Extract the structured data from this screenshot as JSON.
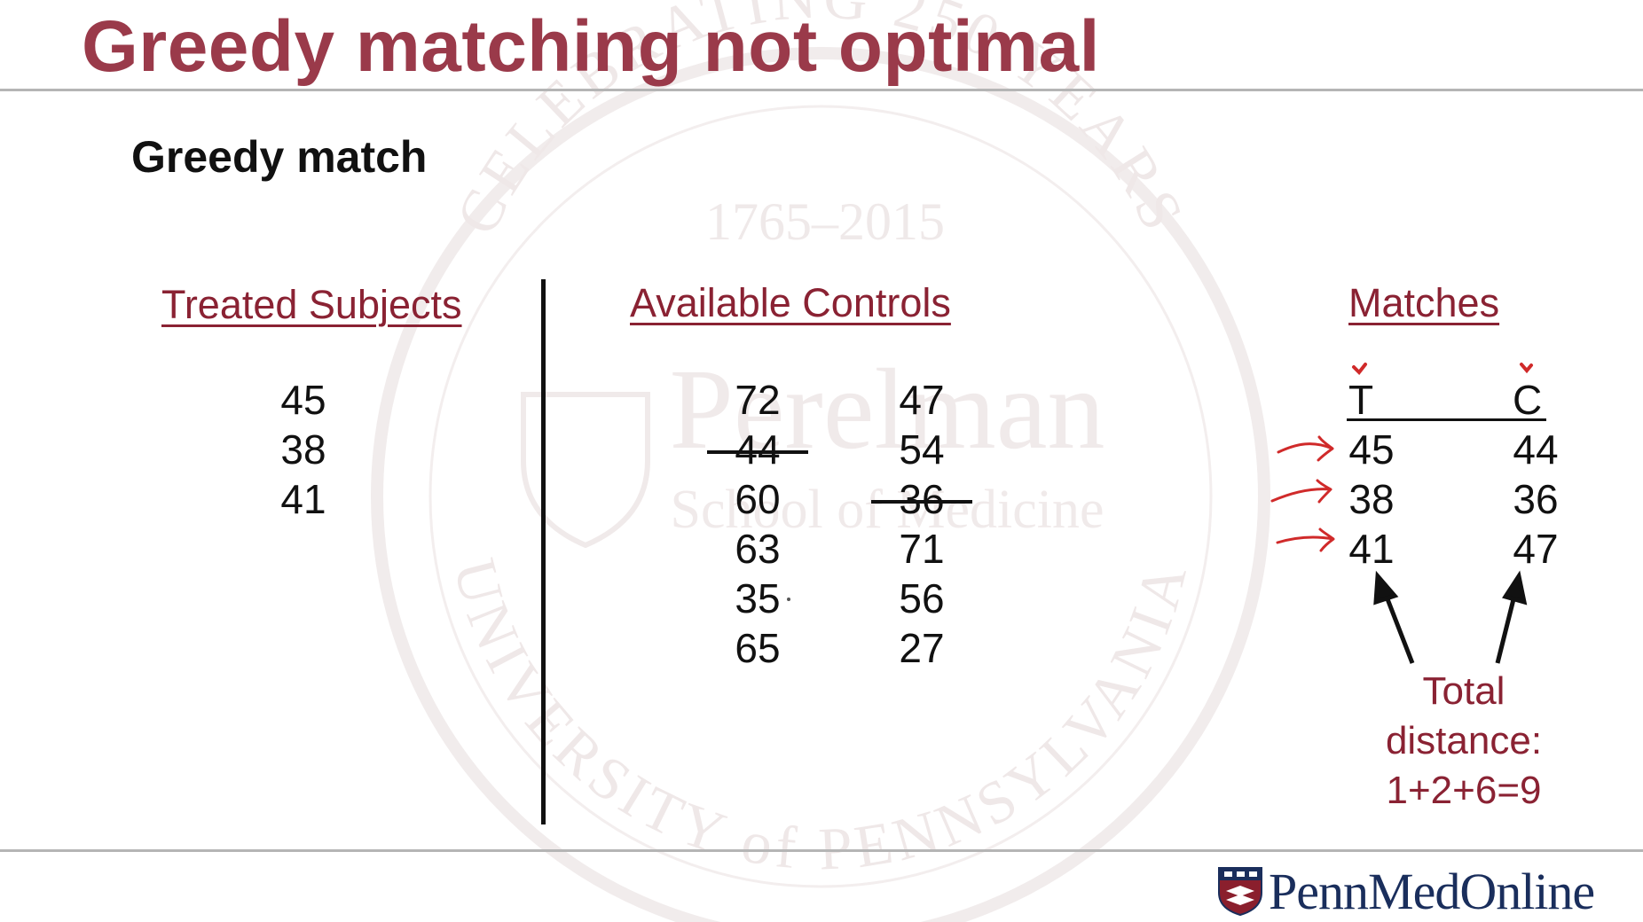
{
  "slide": {
    "title": "Greedy matching not optimal",
    "subtitle": "Greedy match"
  },
  "treated": {
    "header": "Treated Subjects",
    "values": [
      "45",
      "38",
      "41"
    ]
  },
  "controls": {
    "header": "Available Controls",
    "column1": [
      "72",
      "44",
      "60",
      "63",
      "35",
      "65"
    ],
    "column2": [
      "47",
      "54",
      "36",
      "71",
      "56",
      "27"
    ]
  },
  "matches": {
    "header": "Matches",
    "t_label": "T",
    "c_label": "C",
    "rows": [
      {
        "t": "45",
        "c": "44"
      },
      {
        "t": "38",
        "c": "36"
      },
      {
        "t": "41",
        "c": "47"
      }
    ],
    "total_line1": "Total",
    "total_line2": "distance:",
    "total_line3": "1+2+6=9"
  },
  "watermark": {
    "arc_top": "CELEBRATING 250 YEARS",
    "years": "1765–2015",
    "name": "Perelman",
    "school": "School of Medicine",
    "arc_bottom": "UNIVERSITY of PENNSYLVANIA"
  },
  "logo": {
    "text": "PennMedOnline"
  },
  "colors": {
    "title": "#9a3a4a",
    "header": "#8a2233",
    "annotation": "#d02a2a",
    "logo": "#1a2e5c"
  }
}
